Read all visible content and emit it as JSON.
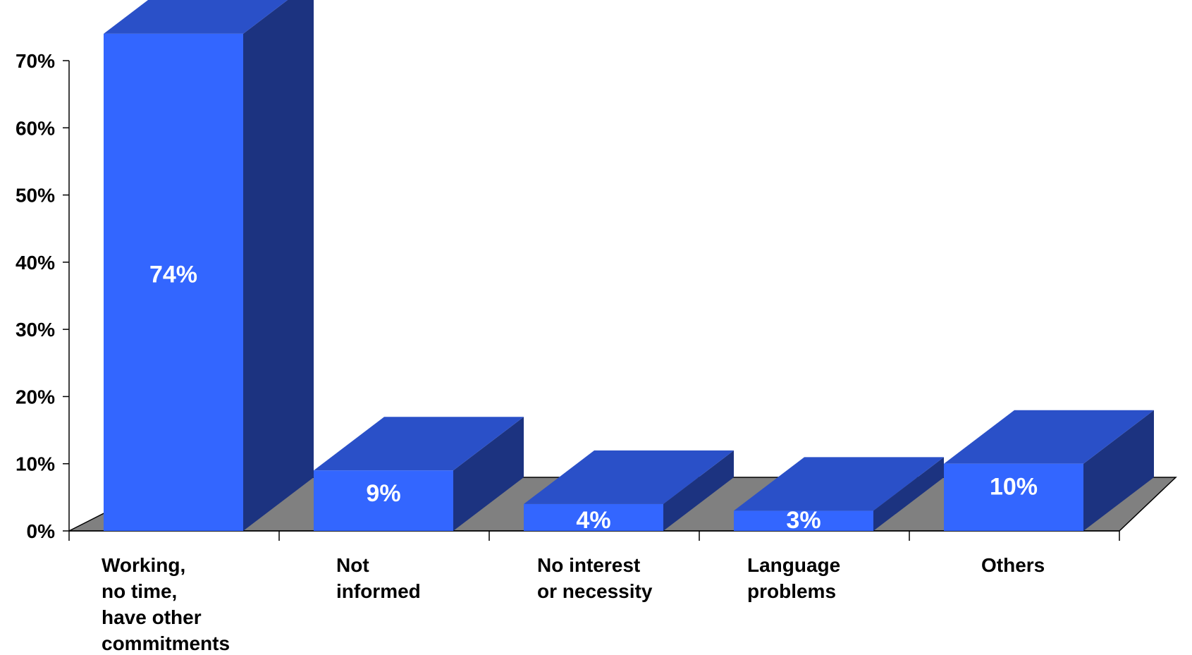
{
  "chart_data": {
    "type": "bar",
    "style": "3d-column",
    "categories": [
      [
        "Working,",
        "no time,",
        "have other",
        "commitments"
      ],
      [
        "Not",
        "informed"
      ],
      [
        "No interest",
        "or necessity"
      ],
      [
        "Language",
        "problems"
      ],
      [
        "Others"
      ]
    ],
    "values": [
      74,
      9,
      4,
      3,
      10
    ],
    "value_labels": [
      "74%",
      "9%",
      "4%",
      "3%",
      "10%"
    ],
    "yticks": [
      "0%",
      "10%",
      "20%",
      "30%",
      "40%",
      "50%",
      "60%",
      "70%"
    ],
    "ylim": [
      0,
      70
    ],
    "title": "",
    "xlabel": "",
    "ylabel": "",
    "grid": false,
    "colors": {
      "bar_front": "#3366ff",
      "bar_top": "#2a50c8",
      "bar_side": "#1c3380",
      "floor": "#808080",
      "axis": "#000000",
      "value_label": "#ffffff",
      "text": "#000000"
    }
  }
}
